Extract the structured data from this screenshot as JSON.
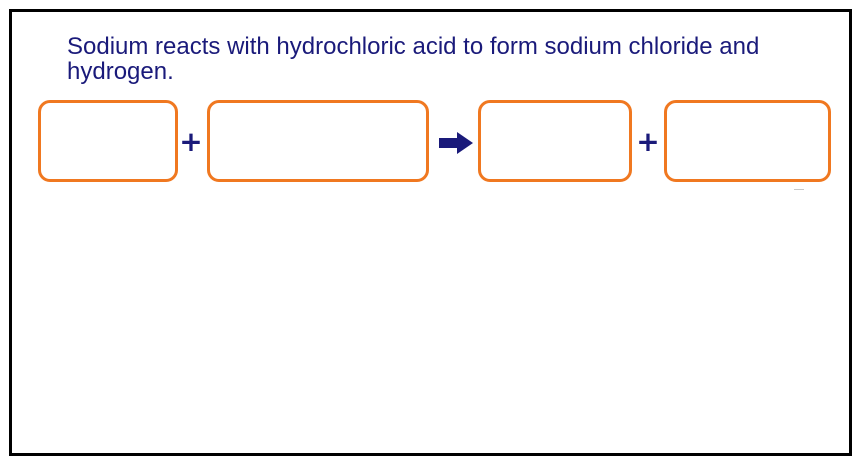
{
  "prompt": {
    "text": "Sodium reacts with hydrochloric acid to form sodium chloride and hydrogen."
  },
  "equation": {
    "plus_1": "+",
    "plus_2": "+",
    "arrow_icon": "right-arrow-icon",
    "box_count": 4
  },
  "colors": {
    "text": "#1a1a7a",
    "box_border": "#f07820",
    "frame": "#000000"
  }
}
